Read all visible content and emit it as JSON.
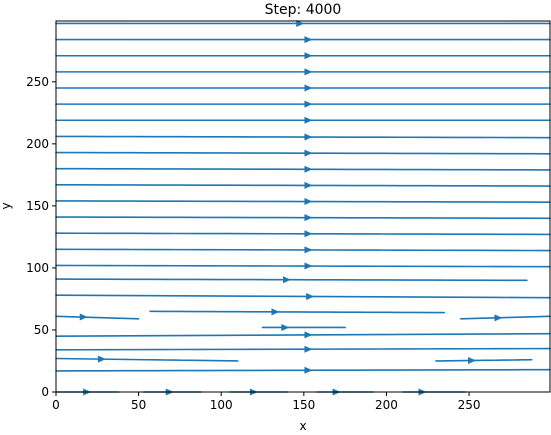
{
  "chart_data": {
    "type": "streamplot",
    "title": "Step: 4000",
    "xlabel": "x",
    "ylabel": "y",
    "xlim": [
      0,
      299
    ],
    "ylim": [
      0,
      299
    ],
    "xticks": [
      0,
      50,
      100,
      150,
      200,
      250
    ],
    "yticks": [
      0,
      50,
      100,
      150,
      200,
      250
    ],
    "line_color": "#1f77b4",
    "streamlines": [
      {
        "x": [
          0,
          299
        ],
        "y": [
          0,
          0
        ],
        "arrows": [
          17,
          67,
          118,
          168,
          220
        ],
        "segments": [
          [
            0,
            38
          ],
          [
            53,
            88
          ],
          [
            105,
            140
          ],
          [
            158,
            192
          ],
          [
            210,
            248
          ]
        ]
      },
      {
        "x": [
          0,
          299
        ],
        "y": [
          17,
          18
        ],
        "arrows": [
          151
        ]
      },
      {
        "x": [
          0,
          110
        ],
        "y": [
          27,
          25
        ],
        "arrows": [
          26
        ]
      },
      {
        "x": [
          230,
          288
        ],
        "y": [
          25,
          26
        ],
        "arrows": [
          250
        ]
      },
      {
        "x": [
          0,
          299
        ],
        "y": [
          34,
          35
        ],
        "arrows": [
          151
        ]
      },
      {
        "x": [
          0,
          299
        ],
        "y": [
          45,
          47
        ],
        "arrows": [
          151
        ]
      },
      {
        "x": [
          125,
          175
        ],
        "y": [
          52,
          52
        ],
        "arrows": [
          137
        ]
      },
      {
        "x": [
          0,
          50
        ],
        "y": [
          61,
          59
        ],
        "arrows": [
          15
        ]
      },
      {
        "x": [
          57,
          235
        ],
        "y": [
          65,
          64
        ],
        "arrows": [
          131
        ]
      },
      {
        "x": [
          245,
          299
        ],
        "y": [
          59,
          61
        ],
        "arrows": [
          266
        ]
      },
      {
        "x": [
          0,
          299
        ],
        "y": [
          78,
          76
        ],
        "arrows": [
          152
        ]
      },
      {
        "x": [
          0,
          285
        ],
        "y": [
          91,
          90
        ],
        "arrows": [
          138
        ]
      },
      {
        "x": [
          0,
          299
        ],
        "y": [
          102,
          101
        ],
        "arrows": [
          151
        ]
      },
      {
        "x": [
          0,
          299
        ],
        "y": [
          115,
          114
        ],
        "arrows": [
          151
        ]
      },
      {
        "x": [
          0,
          299
        ],
        "y": [
          128,
          127
        ],
        "arrows": [
          151
        ]
      },
      {
        "x": [
          0,
          299
        ],
        "y": [
          141,
          140
        ],
        "arrows": [
          151
        ]
      },
      {
        "x": [
          0,
          299
        ],
        "y": [
          154,
          153
        ],
        "arrows": [
          151
        ]
      },
      {
        "x": [
          0,
          299
        ],
        "y": [
          167,
          166
        ],
        "arrows": [
          151
        ]
      },
      {
        "x": [
          0,
          299
        ],
        "y": [
          180,
          179
        ],
        "arrows": [
          151
        ]
      },
      {
        "x": [
          0,
          299
        ],
        "y": [
          193,
          192
        ],
        "arrows": [
          151
        ]
      },
      {
        "x": [
          0,
          299
        ],
        "y": [
          206,
          205
        ],
        "arrows": [
          151
        ]
      },
      {
        "x": [
          0,
          299
        ],
        "y": [
          219,
          219
        ],
        "arrows": [
          151
        ]
      },
      {
        "x": [
          0,
          299
        ],
        "y": [
          232,
          232
        ],
        "arrows": [
          151
        ]
      },
      {
        "x": [
          0,
          299
        ],
        "y": [
          245,
          245
        ],
        "arrows": [
          151
        ]
      },
      {
        "x": [
          0,
          299
        ],
        "y": [
          258,
          258
        ],
        "arrows": [
          151
        ]
      },
      {
        "x": [
          0,
          299
        ],
        "y": [
          271,
          271
        ],
        "arrows": [
          151
        ]
      },
      {
        "x": [
          0,
          299
        ],
        "y": [
          284,
          284
        ],
        "arrows": [
          151
        ]
      },
      {
        "x": [
          0,
          299
        ],
        "y": [
          297,
          297
        ],
        "arrows": [
          146
        ]
      }
    ]
  }
}
